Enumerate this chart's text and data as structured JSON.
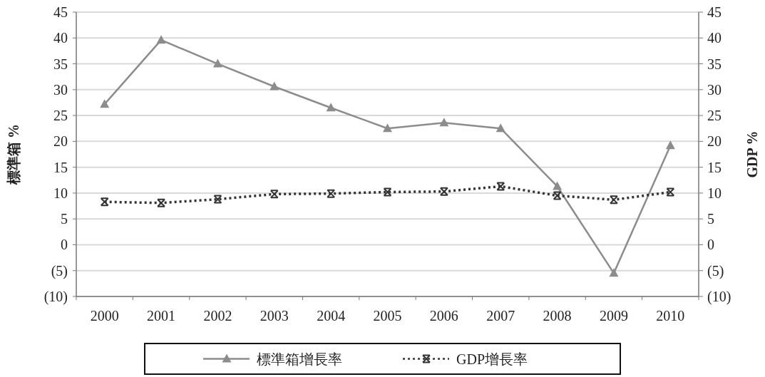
{
  "chart_data": {
    "type": "line",
    "ylabel": "標準箱 %",
    "y2label": "GDP %",
    "categories": [
      "2000",
      "2001",
      "2002",
      "2003",
      "2004",
      "2005",
      "2006",
      "2007",
      "2008",
      "2009",
      "2010"
    ],
    "series": [
      {
        "name": "標準箱增長率",
        "color": "#8c8c8c",
        "marker": "triangle",
        "line_style": "solid",
        "values": [
          27.2,
          39.6,
          35.0,
          30.6,
          26.5,
          22.5,
          23.6,
          22.5,
          11.3,
          -5.5,
          19.2
        ]
      },
      {
        "name": "GDP增長率",
        "color": "#333333",
        "marker": "cross",
        "line_style": "dotted",
        "axis": "y2",
        "values": [
          8.3,
          8.1,
          8.8,
          9.8,
          9.9,
          10.2,
          10.3,
          11.3,
          9.5,
          8.7,
          10.2
        ]
      }
    ],
    "ylim": [
      -10,
      45
    ],
    "yticks": [
      {
        "value": -10,
        "label": "(10)"
      },
      {
        "value": -5,
        "label": "(5)"
      },
      0,
      5,
      10,
      15,
      20,
      25,
      30,
      35,
      40,
      45
    ],
    "y2lim": [
      -10,
      45
    ],
    "y2ticks": [
      {
        "value": -10,
        "label": "(10)"
      },
      {
        "value": -5,
        "label": "(5)"
      },
      0,
      5,
      10,
      15,
      20,
      25,
      30,
      35,
      40,
      45
    ],
    "grid": "y",
    "legend": "bottom"
  }
}
